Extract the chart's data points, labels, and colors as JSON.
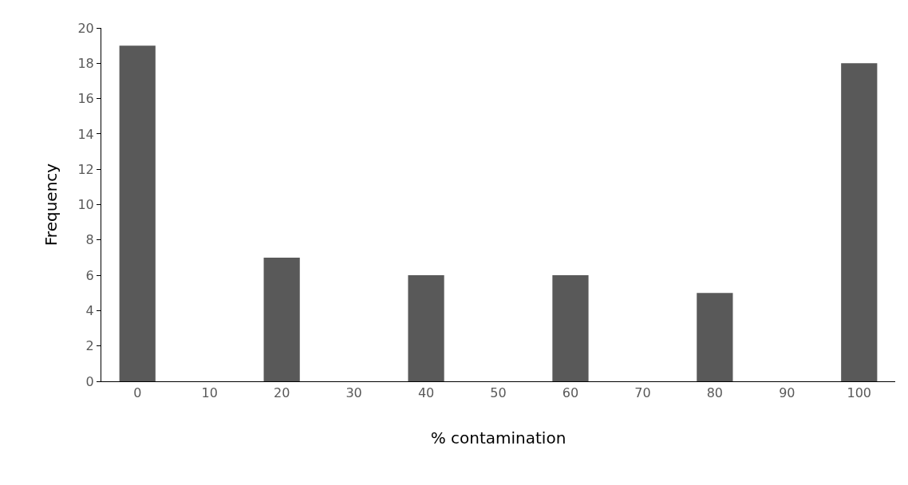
{
  "chart_data": {
    "type": "bar",
    "xlabel": "% contamination",
    "ylabel": "Frequency",
    "categories": [
      "0",
      "10",
      "20",
      "30",
      "40",
      "50",
      "60",
      "70",
      "80",
      "90",
      "100"
    ],
    "values": [
      19,
      0,
      7,
      0,
      6,
      0,
      6,
      0,
      5,
      0,
      18
    ],
    "color": "#595959",
    "ylim": [
      0,
      20
    ],
    "yticks": [
      0,
      2,
      4,
      6,
      8,
      10,
      12,
      14,
      16,
      18,
      20
    ],
    "grid": false
  }
}
